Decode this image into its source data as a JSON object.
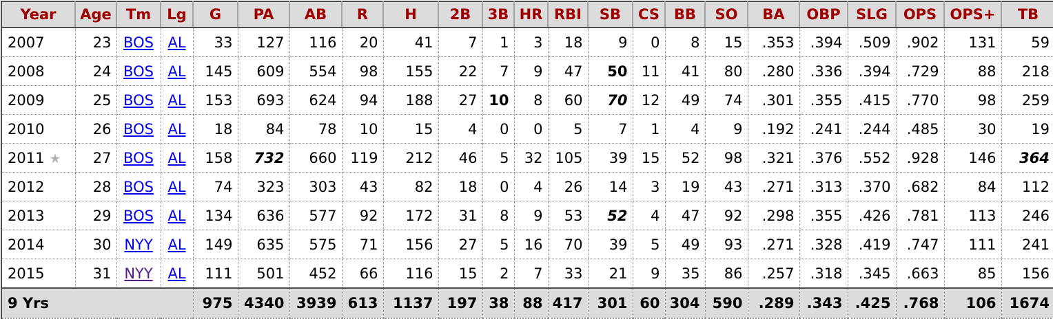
{
  "table": {
    "description_colors": {
      "header_text": "#a00000",
      "header_bg": "#dcdcdc",
      "totals_bg": "#dcdcdc",
      "link_color": "#0000ee",
      "link_visited_color": "#551a8b",
      "star_color": "#b3b3b3",
      "body_text": "#000000"
    },
    "icons": {
      "all_star": {
        "name": "all-star-icon",
        "glyph": "★"
      }
    },
    "columns": [
      "Year",
      "Age",
      "Tm",
      "Lg",
      "G",
      "PA",
      "AB",
      "R",
      "H",
      "2B",
      "3B",
      "HR",
      "RBI",
      "SB",
      "CS",
      "BB",
      "SO",
      "BA",
      "OBP",
      "SLG",
      "OPS",
      "OPS+",
      "TB"
    ],
    "rows": [
      [
        "2007",
        "23",
        {
          "v": "BOS",
          "link": true
        },
        {
          "v": "AL",
          "link": true
        },
        "33",
        "127",
        "116",
        "20",
        "41",
        "7",
        "1",
        "3",
        "18",
        "9",
        "0",
        "8",
        "15",
        ".353",
        ".394",
        ".509",
        ".902",
        "131",
        "59"
      ],
      [
        "2008",
        "24",
        {
          "v": "BOS",
          "link": true
        },
        {
          "v": "AL",
          "link": true
        },
        "145",
        "609",
        "554",
        "98",
        "155",
        "22",
        "7",
        "9",
        "47",
        {
          "v": "50",
          "bold": true
        },
        "11",
        "41",
        "80",
        ".280",
        ".336",
        ".394",
        ".729",
        "88",
        "218"
      ],
      [
        "2009",
        "25",
        {
          "v": "BOS",
          "link": true
        },
        {
          "v": "AL",
          "link": true
        },
        "153",
        "693",
        "624",
        "94",
        "188",
        "27",
        {
          "v": "10",
          "bold": true
        },
        "8",
        "60",
        {
          "v": "70",
          "bold": true,
          "italic": true
        },
        "12",
        "49",
        "74",
        ".301",
        ".355",
        ".415",
        ".770",
        "98",
        "259"
      ],
      [
        "2010",
        "26",
        {
          "v": "BOS",
          "link": true
        },
        {
          "v": "AL",
          "link": true
        },
        "18",
        "84",
        "78",
        "10",
        "15",
        "4",
        "0",
        "0",
        "5",
        "7",
        "1",
        "4",
        "9",
        ".192",
        ".241",
        ".244",
        ".485",
        "30",
        "19"
      ],
      [
        {
          "v": "2011",
          "star": true
        },
        "27",
        {
          "v": "BOS",
          "link": true
        },
        {
          "v": "AL",
          "link": true
        },
        "158",
        {
          "v": "732",
          "bold": true,
          "italic": true
        },
        "660",
        "119",
        "212",
        "46",
        "5",
        "32",
        "105",
        "39",
        "15",
        "52",
        "98",
        ".321",
        ".376",
        ".552",
        ".928",
        "146",
        {
          "v": "364",
          "bold": true,
          "italic": true
        }
      ],
      [
        "2012",
        "28",
        {
          "v": "BOS",
          "link": true
        },
        {
          "v": "AL",
          "link": true
        },
        "74",
        "323",
        "303",
        "43",
        "82",
        "18",
        "0",
        "4",
        "26",
        "14",
        "3",
        "19",
        "43",
        ".271",
        ".313",
        ".370",
        ".682",
        "84",
        "112"
      ],
      [
        "2013",
        "29",
        {
          "v": "BOS",
          "link": true
        },
        {
          "v": "AL",
          "link": true
        },
        "134",
        "636",
        "577",
        "92",
        "172",
        "31",
        "8",
        "9",
        "53",
        {
          "v": "52",
          "bold": true,
          "italic": true
        },
        "4",
        "47",
        "92",
        ".298",
        ".355",
        ".426",
        ".781",
        "113",
        "246"
      ],
      [
        "2014",
        "30",
        {
          "v": "NYY",
          "link": true
        },
        {
          "v": "AL",
          "link": true
        },
        "149",
        "635",
        "575",
        "71",
        "156",
        "27",
        "5",
        "16",
        "70",
        "39",
        "5",
        "49",
        "93",
        ".271",
        ".328",
        ".419",
        ".747",
        "111",
        "241"
      ],
      [
        "2015",
        "31",
        {
          "v": "NYY",
          "link": true,
          "visited": true
        },
        {
          "v": "AL",
          "link": true
        },
        "111",
        "501",
        "452",
        "66",
        "116",
        "15",
        "2",
        "7",
        "33",
        "21",
        "9",
        "35",
        "86",
        ".257",
        ".318",
        ".345",
        ".663",
        "85",
        "156"
      ]
    ],
    "totals": {
      "label": "9 Yrs",
      "values": [
        "975",
        "4340",
        "3939",
        "613",
        "1137",
        "197",
        "38",
        "88",
        "417",
        "301",
        "60",
        "304",
        "590",
        ".289",
        ".343",
        ".425",
        ".768",
        "106",
        "1674"
      ]
    }
  }
}
